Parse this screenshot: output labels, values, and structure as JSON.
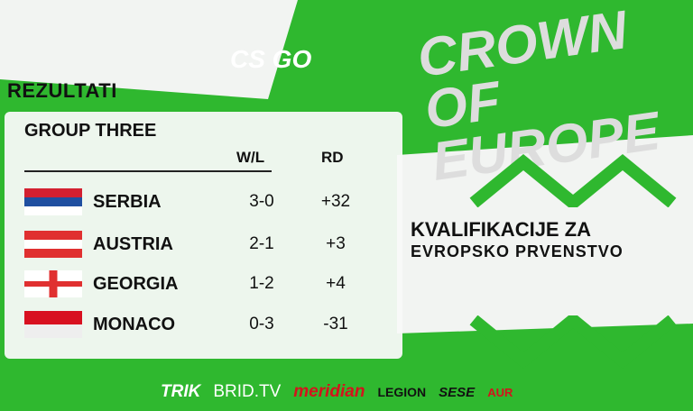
{
  "header": {
    "title": "REZULTATI",
    "logo_text": "CS GO"
  },
  "event": {
    "logo_text": "CROWN OF EUROPE",
    "subtitle_line1": "KVALIFIKACIJE ZA",
    "subtitle_line2": "EVROPSKO PRVENSTVO"
  },
  "table": {
    "group": "GROUP THREE",
    "columns": [
      "W/L",
      "RD"
    ],
    "rows": [
      {
        "team": "SERBIA",
        "wl": "3-0",
        "rd": "+32",
        "flag": "serbia-flag"
      },
      {
        "team": "AUSTRIA",
        "wl": "2-1",
        "rd": "+3",
        "flag": "austria-flag"
      },
      {
        "team": "GEORGIA",
        "wl": "1-2",
        "rd": "+4",
        "flag": "georgia-flag"
      },
      {
        "team": "MONACO",
        "wl": "0-3",
        "rd": "-31",
        "flag": "monaco-flag"
      }
    ]
  },
  "sponsors": [
    "TRIK",
    "BRID.TV",
    "meridian",
    "LEGION",
    "SESE",
    "AUR"
  ],
  "colors": {
    "brand_green": "#2fb82f",
    "meridian_red": "#d3141c"
  }
}
